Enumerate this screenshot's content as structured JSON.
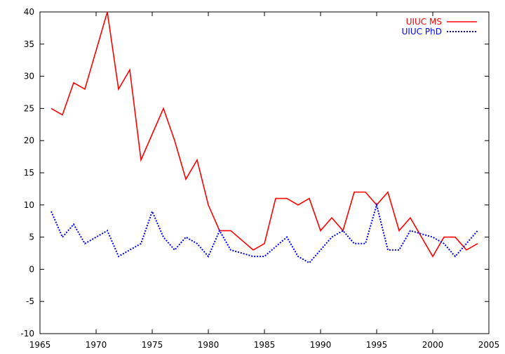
{
  "chart_data": {
    "type": "line",
    "title": "",
    "xlabel": "",
    "ylabel": "",
    "xlim": [
      1965,
      2005
    ],
    "ylim": [
      -10,
      40
    ],
    "xticks": [
      1965,
      1970,
      1975,
      1980,
      1985,
      1990,
      1995,
      2000,
      2005
    ],
    "yticks": [
      -10,
      -5,
      0,
      5,
      10,
      15,
      20,
      25,
      30,
      35,
      40
    ],
    "grid": false,
    "legend_position": "top-right",
    "x": [
      1966,
      1967,
      1968,
      1969,
      1970,
      1971,
      1972,
      1973,
      1974,
      1975,
      1976,
      1977,
      1978,
      1979,
      1980,
      1981,
      1982,
      1983,
      1984,
      1985,
      1986,
      1987,
      1988,
      1989,
      1990,
      1991,
      1992,
      1993,
      1994,
      1995,
      1996,
      1997,
      1998,
      1999,
      2000,
      2001,
      2002,
      2003,
      2004
    ],
    "series": [
      {
        "name": "UIUC MS",
        "color": "#ff0000",
        "style": "solid",
        "values": [
          25,
          24,
          29,
          28,
          34,
          40,
          28,
          31,
          17,
          21,
          25,
          20,
          14,
          17,
          10,
          6,
          6,
          4.5,
          3,
          4,
          11,
          11,
          10,
          11,
          6,
          8,
          6,
          12,
          12,
          10,
          12,
          6,
          8,
          5,
          2,
          5,
          5,
          3,
          4
        ]
      },
      {
        "name": "UIUC PhD",
        "color": "#0000ff",
        "style": "dotted",
        "values": [
          9,
          5,
          7,
          4,
          5,
          6,
          2,
          3,
          4,
          9,
          5,
          3,
          5,
          4,
          2,
          6,
          3,
          2.5,
          2,
          2,
          3.5,
          5,
          2,
          1,
          3,
          5,
          6,
          4,
          4,
          10,
          3,
          3,
          6,
          5.5,
          5,
          4,
          2,
          4,
          6
        ]
      }
    ]
  }
}
